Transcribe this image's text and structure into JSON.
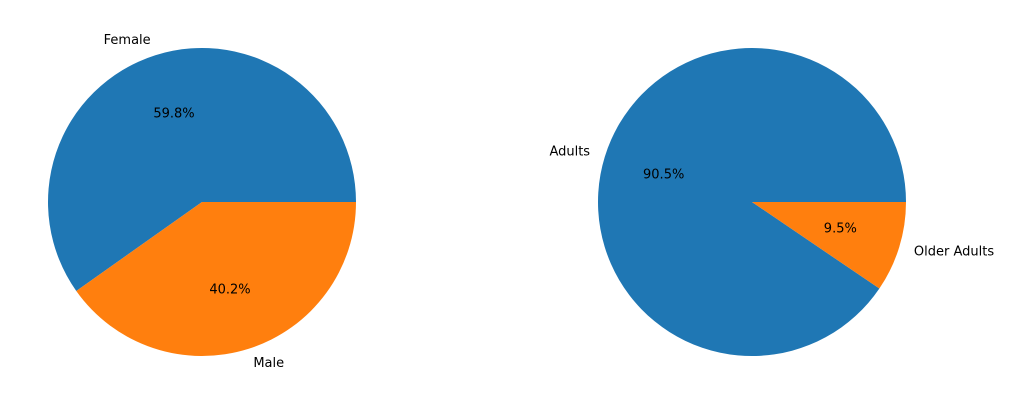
{
  "chart_data": [
    {
      "type": "pie",
      "categories": [
        "Female",
        "Male"
      ],
      "values": [
        59.8,
        40.2
      ],
      "percent_labels": [
        "59.8%",
        "40.2%"
      ],
      "colors": [
        "#1f77b4",
        "#ff7f0e"
      ],
      "start_angle_deg": 0,
      "direction": "counterclockwise"
    },
    {
      "type": "pie",
      "categories": [
        "Adults",
        "Older Adults"
      ],
      "values": [
        90.5,
        9.5
      ],
      "percent_labels": [
        "90.5%",
        "9.5%"
      ],
      "colors": [
        "#1f77b4",
        "#ff7f0e"
      ],
      "start_angle_deg": 0,
      "direction": "counterclockwise"
    }
  ]
}
